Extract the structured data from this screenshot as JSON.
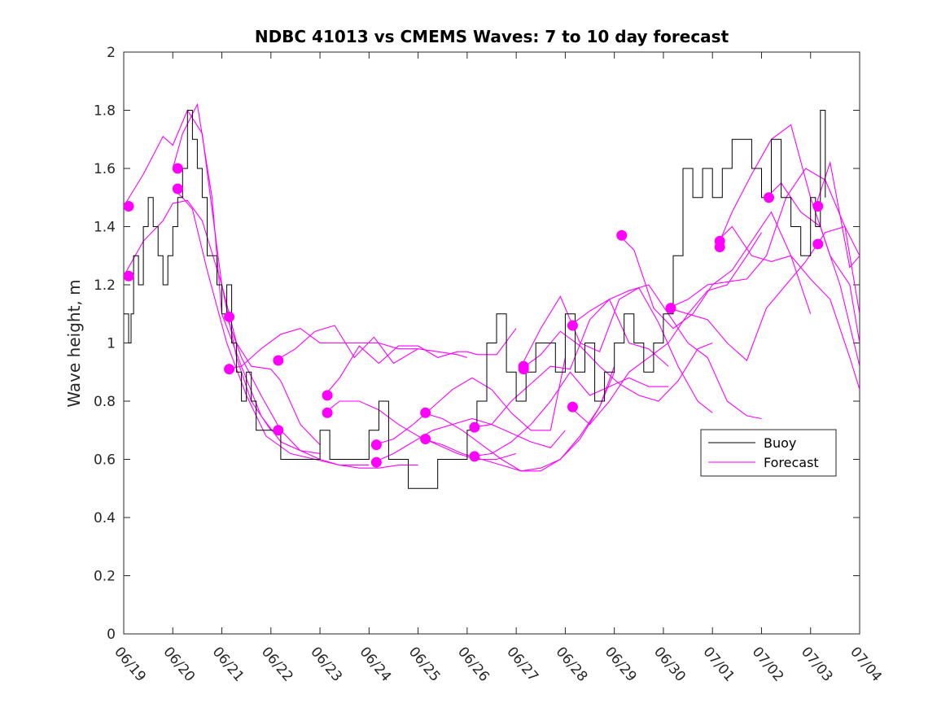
{
  "chart_data": {
    "type": "line",
    "title": "NDBC 41013 vs CMEMS Waves: 7 to 10 day forecast",
    "xlabel": "",
    "ylabel": "Wave height, m",
    "xlim": [
      0,
      15
    ],
    "ylim": [
      0,
      2
    ],
    "xticks": [
      "06/19",
      "06/20",
      "06/21",
      "06/22",
      "06/23",
      "06/24",
      "06/25",
      "06/26",
      "06/27",
      "06/28",
      "06/29",
      "06/30",
      "07/01",
      "07/02",
      "07/03",
      "07/04"
    ],
    "yticks": [
      "0",
      "0.2",
      "0.4",
      "0.6",
      "0.8",
      "1",
      "1.2",
      "1.4",
      "1.6",
      "1.8",
      "2"
    ],
    "grid": false,
    "legend": {
      "position": "right",
      "entries": [
        "Buoy",
        "Forecast"
      ]
    },
    "colors": {
      "buoy": "#000000",
      "forecast": "#ff00ff"
    },
    "buoy": {
      "name": "Buoy",
      "x": [
        0.0,
        0.1,
        0.15,
        0.2,
        0.3,
        0.4,
        0.5,
        0.6,
        0.7,
        0.8,
        0.9,
        1.0,
        1.1,
        1.2,
        1.3,
        1.4,
        1.5,
        1.6,
        1.7,
        1.8,
        1.9,
        2.0,
        2.1,
        2.2,
        2.3,
        2.4,
        2.5,
        2.6,
        2.7,
        2.8,
        2.9,
        3.0,
        3.2,
        3.4,
        3.6,
        3.8,
        4.0,
        4.2,
        4.4,
        4.6,
        4.8,
        5.0,
        5.2,
        5.4,
        5.6,
        5.8,
        6.0,
        6.2,
        6.4,
        6.6,
        6.8,
        7.0,
        7.2,
        7.4,
        7.6,
        7.8,
        8.0,
        8.2,
        8.4,
        8.6,
        8.8,
        9.0,
        9.2,
        9.4,
        9.6,
        9.8,
        10.0,
        10.2,
        10.4,
        10.6,
        10.8,
        11.0,
        11.2,
        11.4,
        11.6,
        11.8,
        12.0,
        12.2,
        12.4,
        12.6,
        12.8,
        13.0,
        13.2,
        13.4,
        13.6,
        13.8,
        14.0,
        14.1,
        14.2,
        14.3
      ],
      "values": [
        1.1,
        1.0,
        1.1,
        1.3,
        1.2,
        1.4,
        1.5,
        1.4,
        1.3,
        1.2,
        1.3,
        1.4,
        1.5,
        1.6,
        1.8,
        1.7,
        1.6,
        1.5,
        1.3,
        1.3,
        1.2,
        1.1,
        1.2,
        1.0,
        0.9,
        0.8,
        0.9,
        0.8,
        0.7,
        0.7,
        0.7,
        0.7,
        0.6,
        0.6,
        0.6,
        0.6,
        0.7,
        0.6,
        0.6,
        0.6,
        0.6,
        0.7,
        0.8,
        0.6,
        0.6,
        0.5,
        0.5,
        0.5,
        0.6,
        0.6,
        0.6,
        0.7,
        0.8,
        1.0,
        1.1,
        0.9,
        0.8,
        0.9,
        1.0,
        1.0,
        0.9,
        1.1,
        0.9,
        1.0,
        0.8,
        0.9,
        1.0,
        1.1,
        1.0,
        0.9,
        1.0,
        1.1,
        1.3,
        1.6,
        1.5,
        1.6,
        1.5,
        1.6,
        1.7,
        1.7,
        1.6,
        1.5,
        1.7,
        1.5,
        1.4,
        1.3,
        1.5,
        1.4,
        1.8,
        1.5
      ]
    },
    "forecast_series": [
      {
        "x": [
          0.0,
          0.4,
          0.8,
          1.0,
          1.3,
          1.6,
          2.0,
          2.3,
          2.6,
          3.0,
          3.2,
          3.6,
          4.0
        ],
        "values": [
          1.47,
          1.58,
          1.71,
          1.68,
          1.8,
          1.72,
          1.2,
          1.0,
          0.92,
          0.91,
          0.87,
          0.72,
          0.65
        ]
      },
      {
        "x": [
          0.0,
          0.4,
          0.8,
          1.0,
          1.3,
          1.6,
          2.0,
          2.3,
          2.6,
          3.0
        ],
        "values": [
          1.23,
          1.35,
          1.42,
          1.48,
          1.49,
          1.42,
          1.2,
          0.95,
          0.8,
          0.7
        ]
      },
      {
        "x": [
          1.0,
          1.2,
          1.5,
          1.8,
          2.0,
          2.4,
          2.8,
          3.2,
          3.6,
          4.0
        ],
        "values": [
          1.6,
          1.72,
          1.82,
          1.5,
          1.1,
          0.92,
          0.75,
          0.66,
          0.63,
          0.62
        ]
      },
      {
        "x": [
          1.0,
          1.2,
          1.4,
          1.7,
          2.1,
          2.5,
          2.9,
          3.4,
          3.9,
          4.4,
          5.0
        ],
        "values": [
          1.53,
          1.5,
          1.46,
          1.25,
          1.0,
          0.82,
          0.68,
          0.62,
          0.6,
          0.58,
          0.58
        ]
      },
      {
        "x": [
          2.1,
          2.4,
          2.8,
          3.2,
          3.6,
          4.0,
          4.4,
          4.8,
          5.2,
          5.6,
          6.0
        ],
        "values": [
          1.09,
          0.95,
          0.82,
          0.7,
          0.63,
          0.6,
          0.58,
          0.57,
          0.57,
          0.58,
          0.58
        ]
      },
      {
        "x": [
          2.1,
          2.4,
          2.8,
          3.2,
          3.6,
          4.0,
          4.4,
          4.8,
          5.2,
          5.6,
          6.0,
          6.4,
          6.8,
          7.0
        ],
        "values": [
          0.91,
          0.92,
          0.98,
          1.03,
          1.05,
          1.0,
          1.0,
          1.0,
          1.0,
          0.98,
          0.98,
          0.97,
          0.96,
          0.95
        ]
      },
      {
        "x": [
          3.1,
          3.5,
          3.9,
          4.3,
          4.7,
          5.1,
          5.5,
          6.0
        ],
        "values": [
          0.94,
          0.98,
          1.04,
          1.06,
          0.95,
          1.02,
          0.93,
          0.98
        ]
      },
      {
        "x": [
          4.1,
          4.4,
          4.8,
          5.2,
          5.6,
          6.0,
          6.4,
          6.8,
          7.0,
          7.2,
          7.6,
          8.0
        ],
        "values": [
          0.82,
          0.88,
          0.99,
          0.93,
          0.99,
          0.99,
          0.95,
          0.97,
          0.97,
          0.96,
          0.96,
          1.05
        ]
      },
      {
        "x": [
          4.1,
          4.4,
          4.8,
          5.2,
          5.6,
          6.0,
          6.4,
          6.8,
          7.2,
          7.6,
          8.0
        ],
        "values": [
          0.76,
          0.8,
          0.8,
          0.77,
          0.72,
          0.68,
          0.65,
          0.62,
          0.6,
          0.6,
          0.62
        ]
      },
      {
        "x": [
          5.1,
          5.5,
          5.9,
          6.3,
          6.7,
          7.1,
          7.5,
          7.9,
          8.3,
          8.7,
          9.0
        ],
        "values": [
          0.65,
          0.67,
          0.72,
          0.78,
          0.84,
          0.88,
          0.84,
          0.76,
          0.7,
          0.7,
          0.95
        ]
      },
      {
        "x": [
          5.1,
          5.5,
          5.9,
          6.3,
          6.7,
          7.1,
          7.5,
          7.9,
          8.3,
          8.7,
          9.0
        ],
        "values": [
          0.59,
          0.62,
          0.66,
          0.7,
          0.72,
          0.74,
          0.72,
          0.69,
          0.66,
          0.64,
          0.7
        ]
      },
      {
        "x": [
          6.1,
          6.5,
          6.9,
          7.3,
          7.7,
          8.1,
          8.5,
          8.9,
          9.3,
          9.7,
          10.0
        ],
        "values": [
          0.76,
          0.74,
          0.7,
          0.65,
          0.6,
          0.56,
          0.56,
          0.6,
          0.67,
          0.78,
          0.9
        ]
      },
      {
        "x": [
          6.1,
          6.5,
          6.9,
          7.3,
          7.7,
          8.1,
          8.5,
          8.9,
          9.3,
          9.7,
          10.0
        ],
        "values": [
          0.67,
          0.65,
          0.62,
          0.6,
          0.58,
          0.56,
          0.57,
          0.6,
          0.68,
          0.78,
          0.92
        ]
      },
      {
        "x": [
          7.1,
          7.5,
          7.9,
          8.3,
          8.7,
          9.1,
          9.5,
          9.9,
          10.3,
          10.7,
          11.1
        ],
        "values": [
          0.71,
          0.72,
          0.8,
          0.86,
          0.92,
          0.91,
          1.08,
          1.15,
          1.0,
          0.98,
          0.92
        ]
      },
      {
        "x": [
          7.1,
          7.5,
          7.9,
          8.3,
          8.7,
          9.1,
          9.5,
          9.9,
          10.3,
          10.7,
          11.1
        ],
        "values": [
          0.61,
          0.62,
          0.66,
          0.72,
          0.8,
          0.9,
          0.82,
          0.85,
          0.88,
          0.85,
          0.85
        ]
      },
      {
        "x": [
          8.1,
          8.5,
          8.9,
          9.3,
          9.7,
          10.1,
          10.5,
          10.9,
          11.3,
          11.7,
          12.0
        ],
        "values": [
          0.92,
          1.05,
          1.16,
          1.0,
          0.97,
          1.15,
          1.19,
          1.07,
          0.92,
          0.8,
          0.76
        ]
      },
      {
        "x": [
          8.1,
          8.5,
          8.9,
          9.3,
          9.7,
          10.1,
          10.5,
          10.9,
          11.3,
          11.7,
          12.0
        ],
        "values": [
          0.91,
          0.96,
          1.04,
          0.99,
          0.92,
          0.86,
          0.82,
          0.8,
          0.87,
          0.98,
          1.0
        ]
      },
      {
        "x": [
          9.1,
          9.5,
          9.9,
          10.3,
          10.7,
          11.1,
          11.5,
          11.9,
          12.3,
          12.7,
          13.0
        ],
        "values": [
          1.06,
          1.11,
          1.15,
          1.18,
          1.2,
          1.1,
          1.0,
          0.95,
          0.8,
          0.75,
          0.74
        ]
      },
      {
        "x": [
          9.1,
          9.5,
          9.9,
          10.3,
          10.7,
          11.1,
          11.5,
          11.9,
          12.3,
          12.7,
          13.0
        ],
        "values": [
          0.78,
          0.72,
          0.8,
          0.9,
          0.95,
          1.0,
          1.1,
          1.18,
          1.2,
          1.3,
          1.38
        ]
      },
      {
        "x": [
          10.1,
          10.4,
          10.8,
          11.2,
          11.6,
          12.0,
          12.4,
          12.8,
          13.2,
          13.6,
          14.0
        ],
        "values": [
          1.37,
          1.32,
          1.12,
          1.05,
          1.1,
          1.2,
          1.25,
          1.35,
          1.45,
          1.3,
          1.1
        ]
      },
      {
        "x": [
          11.1,
          11.5,
          11.9,
          12.3,
          12.7,
          13.1,
          13.5,
          13.9,
          14.3,
          14.7,
          15.0
        ],
        "values": [
          1.12,
          1.15,
          1.2,
          1.21,
          1.22,
          1.3,
          1.5,
          1.6,
          1.56,
          1.4,
          1.3
        ]
      },
      {
        "x": [
          11.1,
          11.5,
          11.9,
          12.3,
          12.7,
          13.1,
          13.5,
          13.9,
          14.3,
          14.7,
          15.0
        ],
        "values": [
          1.12,
          1.1,
          1.08,
          1.0,
          0.94,
          1.12,
          1.2,
          1.28,
          1.38,
          1.4,
          1.1
        ]
      },
      {
        "x": [
          12.1,
          12.4,
          12.8,
          13.2,
          13.6,
          14.0,
          14.4,
          14.8,
          15.0
        ],
        "values": [
          1.35,
          1.4,
          1.3,
          1.28,
          1.3,
          1.22,
          1.15,
          0.95,
          0.84
        ]
      },
      {
        "x": [
          12.1,
          12.4,
          12.8,
          13.2,
          13.6,
          14.0,
          14.4,
          14.8,
          15.0
        ],
        "values": [
          1.33,
          1.45,
          1.58,
          1.7,
          1.75,
          1.5,
          1.3,
          1.2,
          1.0
        ]
      },
      {
        "x": [
          13.1,
          13.4,
          13.8,
          14.2,
          14.6,
          15.0
        ],
        "values": [
          1.5,
          1.55,
          1.45,
          1.4,
          1.2,
          0.92
        ]
      },
      {
        "x": [
          14.1,
          14.4,
          14.8,
          15.0
        ],
        "values": [
          1.47,
          1.62,
          1.26,
          1.3
        ]
      }
    ],
    "forecast_markers": {
      "x": [
        0.1,
        0.1,
        1.1,
        1.1,
        2.15,
        2.15,
        3.15,
        3.15,
        4.15,
        4.15,
        5.15,
        5.15,
        6.15,
        6.15,
        7.15,
        7.15,
        8.15,
        8.15,
        9.15,
        9.15,
        10.15,
        11.15,
        12.15,
        12.15,
        13.15,
        14.15,
        14.15
      ],
      "values": [
        1.47,
        1.23,
        1.6,
        1.53,
        1.09,
        0.91,
        0.94,
        0.7,
        0.82,
        0.76,
        0.65,
        0.59,
        0.76,
        0.67,
        0.71,
        0.61,
        0.92,
        0.91,
        1.06,
        0.78,
        1.37,
        1.12,
        1.35,
        1.33,
        1.5,
        1.47,
        1.34
      ]
    }
  }
}
